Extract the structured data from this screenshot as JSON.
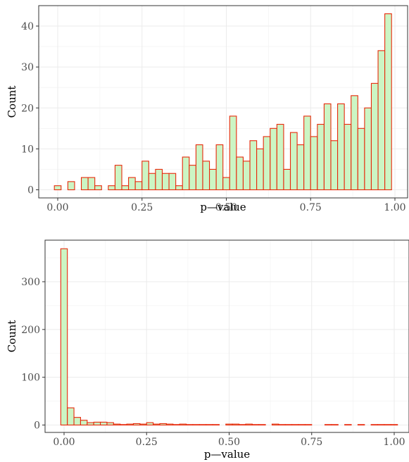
{
  "colors": {
    "bar_fill": "#ccf5c4",
    "bar_stroke": "#e8290b",
    "grid": "#ebebeb",
    "axis_text": "#4d4d4d"
  },
  "chart_data": [
    {
      "type": "bar",
      "title": "",
      "xlabel": "p—value",
      "ylabel": "Count",
      "xlim": [
        0,
        1
      ],
      "ylim": [
        0,
        45
      ],
      "xticks": [
        "0.00",
        "0.25",
        "0.50",
        "0.75",
        "1.00"
      ],
      "yticks": [
        "0",
        "10",
        "20",
        "30",
        "40"
      ],
      "bin_width": 0.02,
      "bin_centers": [
        0.0,
        0.02,
        0.04,
        0.06,
        0.08,
        0.1,
        0.12,
        0.14,
        0.16,
        0.18,
        0.2,
        0.22,
        0.24,
        0.26,
        0.28,
        0.3,
        0.32,
        0.34,
        0.36,
        0.38,
        0.4,
        0.42,
        0.44,
        0.46,
        0.48,
        0.5,
        0.52,
        0.54,
        0.56,
        0.58,
        0.6,
        0.62,
        0.64,
        0.66,
        0.68,
        0.7,
        0.72,
        0.74,
        0.76,
        0.78,
        0.8,
        0.82,
        0.84,
        0.86,
        0.88,
        0.9,
        0.92,
        0.94,
        0.96,
        0.98,
        1.0
      ],
      "values": [
        1,
        0,
        2,
        0,
        3,
        3,
        1,
        0,
        1,
        6,
        1,
        3,
        2,
        7,
        4,
        5,
        4,
        4,
        1,
        8,
        6,
        11,
        7,
        5,
        11,
        3,
        18,
        8,
        7,
        12,
        10,
        13,
        15,
        16,
        5,
        14,
        11,
        18,
        13,
        16,
        21,
        12,
        21,
        16,
        23,
        15,
        20,
        26,
        34,
        43,
        0
      ]
    },
    {
      "type": "bar",
      "title": "",
      "xlabel": "p—value",
      "ylabel": "Count",
      "xlim": [
        0,
        1
      ],
      "ylim": [
        0,
        385
      ],
      "xticks": [
        "0.00",
        "0.25",
        "0.50",
        "0.75",
        "1.00"
      ],
      "yticks": [
        "0",
        "100",
        "200",
        "300"
      ],
      "bin_width": 0.02,
      "bin_centers": [
        0.0,
        0.02,
        0.04,
        0.06,
        0.08,
        0.1,
        0.12,
        0.14,
        0.16,
        0.18,
        0.2,
        0.22,
        0.24,
        0.26,
        0.28,
        0.3,
        0.32,
        0.34,
        0.36,
        0.38,
        0.4,
        0.42,
        0.44,
        0.46,
        0.48,
        0.5,
        0.52,
        0.54,
        0.56,
        0.58,
        0.6,
        0.62,
        0.64,
        0.66,
        0.68,
        0.7,
        0.72,
        0.74,
        0.76,
        0.78,
        0.8,
        0.82,
        0.84,
        0.86,
        0.88,
        0.9,
        0.92,
        0.94,
        0.96,
        0.98,
        1.0
      ],
      "values": [
        369,
        36,
        16,
        10,
        5,
        6,
        6,
        5,
        2,
        1,
        2,
        3,
        2,
        5,
        2,
        3,
        2,
        1,
        2,
        1,
        1,
        1,
        1,
        1,
        0,
        2,
        2,
        1,
        2,
        1,
        1,
        0,
        2,
        1,
        1,
        1,
        1,
        1,
        0,
        0,
        1,
        1,
        0,
        1,
        0,
        1,
        0,
        1,
        1,
        1,
        1
      ]
    }
  ]
}
